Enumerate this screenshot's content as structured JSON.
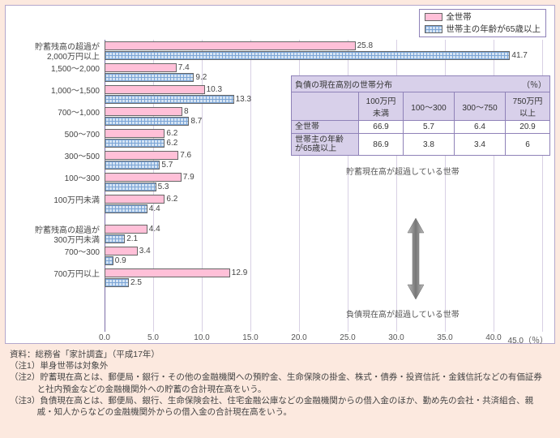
{
  "legend": {
    "series_a": "全世帯",
    "series_b": "世帯主の年齢が65歳以上"
  },
  "colors": {
    "pink": "#ffc0d8",
    "blue_grid": "#7aa4d6",
    "blue_fill": "#d4e3f3",
    "panel_border": "#b4a8cc",
    "body_bg": "#fce9df"
  },
  "x_axis": {
    "min": 0,
    "max": 45,
    "step": 5,
    "unit": "45.0（％）",
    "ticks": [
      "0.0",
      "5.0",
      "10.0",
      "15.0",
      "20.0",
      "25.0",
      "30.0",
      "35.0",
      "40.0"
    ]
  },
  "group_a_label": "貯蓄現在高が超過している世帯",
  "group_b_label": "負債現在高が超過している世帯",
  "categories_a": [
    {
      "label": "貯蓄残高の超過が\n2,000万円以上",
      "pink": 25.8,
      "blue": 41.7
    },
    {
      "label": "1,500～2,000",
      "pink": 7.4,
      "blue": 9.2
    },
    {
      "label": "1,000～1,500",
      "pink": 10.3,
      "blue": 13.3
    },
    {
      "label": "700～1,000",
      "pink": 8.0,
      "blue": 8.7
    },
    {
      "label": "500～700",
      "pink": 6.2,
      "blue": 6.2
    },
    {
      "label": "300～500",
      "pink": 7.6,
      "blue": 5.7
    },
    {
      "label": "100～300",
      "pink": 7.9,
      "blue": 5.3
    },
    {
      "label": "100万円未満",
      "pink": 6.2,
      "blue": 4.4
    }
  ],
  "categories_b": [
    {
      "label": "貯蓄残高の超過が\n300万円未満",
      "pink": 4.4,
      "blue": 2.1
    },
    {
      "label": "700～300",
      "pink": 3.4,
      "blue": 0.9
    },
    {
      "label": "700万円以上",
      "pink": 12.9,
      "blue": 2.5
    }
  ],
  "debt_table": {
    "title": "負債の現在高別の世帯分布",
    "unit": "（％）",
    "cols": [
      "100万円\n未満",
      "100～300",
      "300～750",
      "750万円\n以上"
    ],
    "rows": [
      {
        "hdr": "全世帯",
        "vals": [
          66.9,
          5.7,
          6.4,
          20.9
        ]
      },
      {
        "hdr": "世帯主の年齢\nが65歳以上",
        "vals": [
          86.9,
          3.8,
          3.4,
          6.0
        ]
      }
    ]
  },
  "source": "資料：総務省「家計調査」（平成17年）",
  "notes": [
    "（注1）単身世帯は対象外",
    "（注2）貯蓄現在高とは、郵便局・銀行・その他の金融機関への預貯金、生命保険の掛金、株式・債券・投資信託・金銭信託などの有価証券と社内預金などの金融機関外への貯蓄の合計現在高をいう。",
    "（注3）負債現在高とは、郵便局、銀行、生命保険会社、住宅金融公庫などの金融機関からの借入金のほか、勤め先の会社・共済組合、親戚・知人からなどの金融機関外からの借入金の合計現在高をいう。"
  ]
}
